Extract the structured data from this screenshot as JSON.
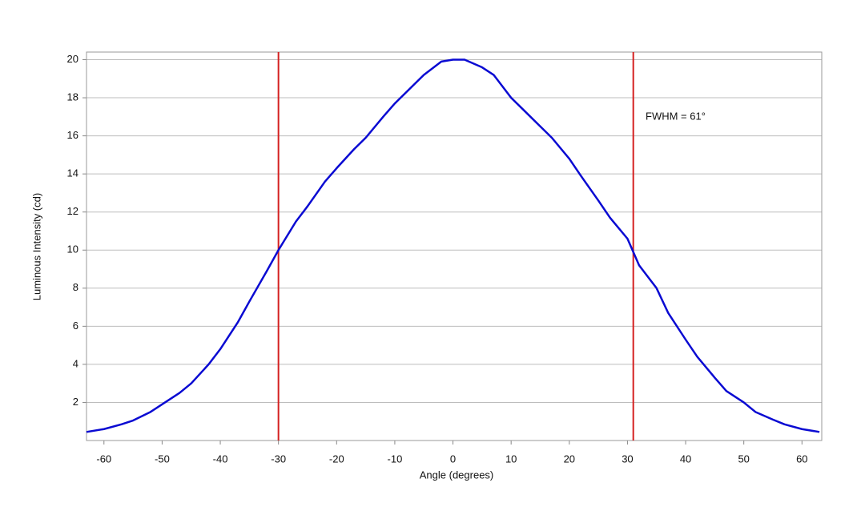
{
  "chart_data": {
    "type": "line",
    "x_label": "Angle (degrees)",
    "y_label": "Luminous Intensity (cd)",
    "annotation": "FWHM = 61°",
    "x": [
      -63,
      -60,
      -57,
      -55,
      -52,
      -50,
      -47,
      -45,
      -42,
      -40,
      -37,
      -35,
      -32,
      -30,
      -27,
      -25,
      -22,
      -20,
      -17,
      -15,
      -12,
      -10,
      -7,
      -5,
      -2,
      0,
      2,
      5,
      7,
      10,
      12,
      15,
      17,
      20,
      22,
      25,
      27,
      30,
      32,
      35,
      37,
      40,
      42,
      45,
      47,
      50,
      52,
      55,
      57,
      60,
      63
    ],
    "series": [
      {
        "name": "Luminous Intensity",
        "color": "#0a0ad2",
        "values": [
          0.45,
          0.6,
          0.85,
          1.05,
          1.5,
          1.9,
          2.5,
          3.0,
          4.0,
          4.8,
          6.2,
          7.3,
          8.9,
          10.0,
          11.5,
          12.3,
          13.6,
          14.3,
          15.3,
          15.9,
          17.0,
          17.7,
          18.6,
          19.2,
          19.9,
          20.0,
          20.0,
          19.6,
          19.2,
          18.0,
          17.4,
          16.5,
          15.9,
          14.8,
          13.9,
          12.6,
          11.7,
          10.6,
          9.2,
          8.0,
          6.7,
          5.3,
          4.4,
          3.3,
          2.6,
          2.0,
          1.5,
          1.1,
          0.85,
          0.6,
          0.45
        ]
      }
    ],
    "vlines": [
      -30,
      31
    ],
    "vline_color": "#d42020",
    "xlim": [
      -63,
      63.4
    ],
    "ylim": [
      0,
      20.4
    ],
    "xticks": [
      -60,
      -50,
      -40,
      -30,
      -20,
      -10,
      0,
      10,
      20,
      30,
      40,
      50,
      60
    ],
    "yticks": [
      2,
      4,
      6,
      8,
      10,
      12,
      14,
      16,
      18,
      20
    ],
    "grid": true
  }
}
